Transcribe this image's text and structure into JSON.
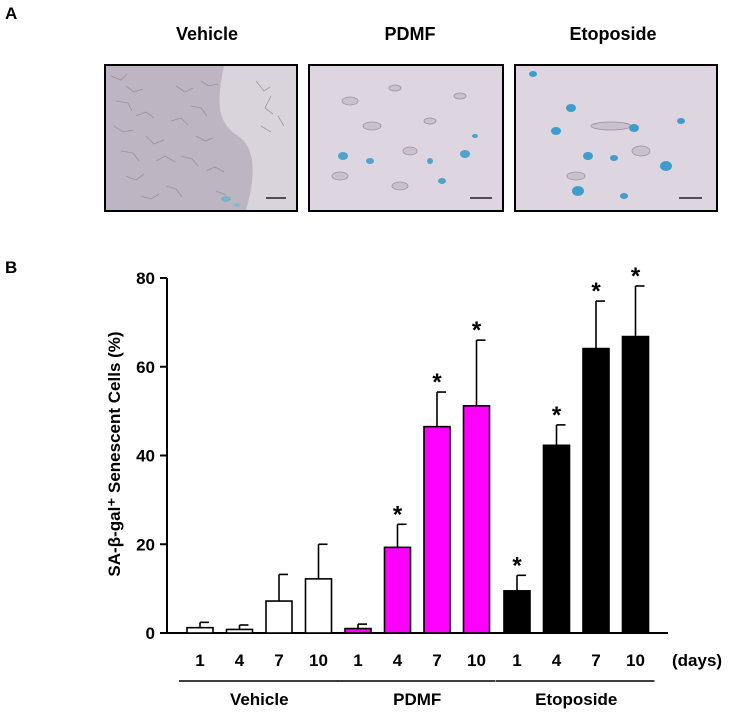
{
  "panel_a_label": "A",
  "panel_b_label": "B",
  "images": [
    {
      "title": "Vehicle"
    },
    {
      "title": "PDMF"
    },
    {
      "title": "Etoposide"
    }
  ],
  "chart_data": {
    "type": "bar",
    "ylabel": "SA-β-gal⁺ Senescent Cells (%)",
    "xunit": "(days)",
    "ylim": [
      0,
      80
    ],
    "yticks": [
      0,
      20,
      40,
      60,
      80
    ],
    "groups": [
      {
        "name": "Vehicle",
        "color": "#ffffff",
        "categories": [
          "1",
          "4",
          "7",
          "10"
        ],
        "values": [
          1.2,
          0.8,
          7.2,
          12.2
        ],
        "errors": [
          1.2,
          1.0,
          6.0,
          7.8
        ],
        "significant": [
          false,
          false,
          false,
          false
        ]
      },
      {
        "name": "PDMF",
        "color": "#ff00ff",
        "categories": [
          "1",
          "4",
          "7",
          "10"
        ],
        "values": [
          1.0,
          19.3,
          46.5,
          51.2
        ],
        "errors": [
          1.0,
          5.2,
          7.8,
          14.8
        ],
        "significant": [
          false,
          true,
          true,
          true
        ]
      },
      {
        "name": "Etoposide",
        "color": "#000000",
        "categories": [
          "1",
          "4",
          "7",
          "10"
        ],
        "values": [
          9.5,
          42.3,
          64.1,
          66.8
        ],
        "errors": [
          3.5,
          4.6,
          10.7,
          11.4
        ],
        "significant": [
          true,
          true,
          true,
          true
        ]
      }
    ],
    "significance_marker": "*"
  }
}
